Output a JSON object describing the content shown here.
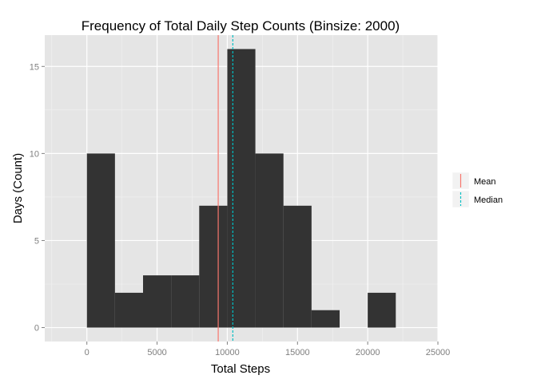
{
  "chart_data": {
    "type": "bar",
    "title": "Frequency of Total Daily Step Counts (Binsize: 2000)",
    "xlabel": "Total Steps",
    "ylabel": "Days (Count)",
    "xlim": [
      -3000,
      25000
    ],
    "ylim": [
      -0.8,
      16.8
    ],
    "xticks": [
      0,
      5000,
      10000,
      15000,
      20000,
      25000
    ],
    "yticks": [
      0,
      5,
      10,
      15
    ],
    "binwidth": 2000,
    "bins": [
      {
        "x0": 0,
        "x1": 2000,
        "count": 10
      },
      {
        "x0": 2000,
        "x1": 4000,
        "count": 2
      },
      {
        "x0": 4000,
        "x1": 6000,
        "count": 3
      },
      {
        "x0": 6000,
        "x1": 8000,
        "count": 3
      },
      {
        "x0": 8000,
        "x1": 10000,
        "count": 7
      },
      {
        "x0": 10000,
        "x1": 12000,
        "count": 16
      },
      {
        "x0": 12000,
        "x1": 14000,
        "count": 10
      },
      {
        "x0": 14000,
        "x1": 16000,
        "count": 7
      },
      {
        "x0": 16000,
        "x1": 18000,
        "count": 1
      },
      {
        "x0": 18000,
        "x1": 20000,
        "count": 0
      },
      {
        "x0": 20000,
        "x1": 22000,
        "count": 2
      }
    ],
    "vlines": [
      {
        "name": "Mean",
        "value": 9354,
        "color": "#f8766d",
        "dash": "solid"
      },
      {
        "name": "Median",
        "value": 10395,
        "color": "#00bfc4",
        "dash": "dashed"
      }
    ],
    "bar_color": "#333333",
    "panel_color": "#e5e5e5",
    "grid": true,
    "legend_position": "right"
  }
}
